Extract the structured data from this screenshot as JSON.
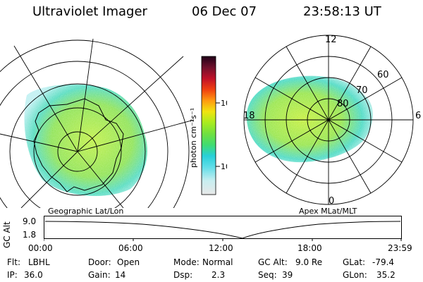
{
  "header": {
    "title": "Ultraviolet Imager",
    "date": "06 Dec 07",
    "time": "23:58:13 UT"
  },
  "left_panel": {
    "caption": "Geographic Lat/Lon"
  },
  "right_panel": {
    "caption": "Apex MLat/MLT",
    "mlt_labels": {
      "top": "12",
      "right": "6",
      "bottom": "0",
      "left": "18"
    },
    "lat_labels": [
      "60",
      "70",
      "80"
    ]
  },
  "colorbar": {
    "unit": "photon cm⁻²s⁻¹",
    "tick_labels": [
      "100",
      "10"
    ],
    "colors": [
      "#e8e8e8",
      "#c8eef0",
      "#60dde8",
      "#28d0d8",
      "#40dc70",
      "#70e040",
      "#a8ec20",
      "#f0e410",
      "#ff9a10",
      "#f04010",
      "#c01028",
      "#70102c",
      "#200018"
    ]
  },
  "altitude_plot": {
    "ylabel": "GC Alt",
    "y_ticks": [
      "9.0",
      "1.8"
    ],
    "x_ticks": [
      "00:00",
      "06:00",
      "12:00",
      "18:00",
      "23:59"
    ]
  },
  "info": {
    "rows": [
      [
        {
          "key": "Flt:",
          "value": "LBHL"
        },
        {
          "key": "Door:",
          "value": "Open"
        },
        {
          "key": "Mode:",
          "value": "Normal"
        },
        {
          "key": "GC Alt:",
          "value": "9.0 Re"
        },
        {
          "key": "GLat:",
          "value": "-79.4"
        }
      ],
      [
        {
          "key": "IP:",
          "value": "36.0"
        },
        {
          "key": "Gain:",
          "value": "14"
        },
        {
          "key": "Dsp:",
          "value": "2.3"
        },
        {
          "key": "Seq:",
          "value": "39"
        },
        {
          "key": "GLon:",
          "value": "35.2"
        }
      ]
    ]
  }
}
